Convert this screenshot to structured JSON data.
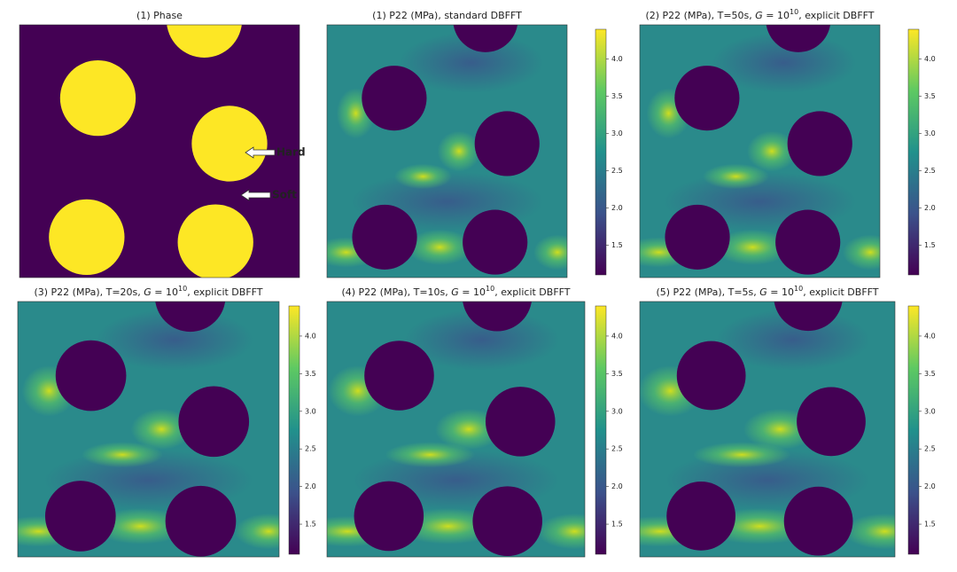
{
  "panels": [
    {
      "title": [
        "(1) Phase"
      ]
    },
    {
      "title": [
        "(1) P22 (MPa), standard DBFFT"
      ]
    },
    {
      "title": [
        "(2) P22 (MPa), T=50s, ",
        "G",
        " = 10",
        "10",
        ", explicit DBFFT"
      ]
    },
    {
      "title": [
        "(3) P22 (MPa), T=20s, ",
        "G",
        " = 10",
        "10",
        ", explicit DBFFT"
      ]
    },
    {
      "title": [
        "(4) P22 (MPa), T=10s, ",
        "G",
        " = 10",
        "10",
        ", explicit DBFFT"
      ]
    },
    {
      "title": [
        "(5) P22 (MPa), T=5s,  ",
        "G",
        " = 10",
        "10",
        ", explicit DBFFT"
      ]
    }
  ],
  "colorbar": {
    "clim": [
      1.1,
      4.4
    ],
    "ticks": [
      {
        "value": 1.5,
        "label": "1.5"
      },
      {
        "value": 2,
        "label": "2.0"
      },
      {
        "value": 2.5,
        "label": "2.5"
      },
      {
        "value": 3,
        "label": "3.0"
      },
      {
        "value": 3.5,
        "label": "3.5"
      },
      {
        "value": 4,
        "label": "4.0"
      }
    ]
  },
  "annotations": [
    "Hard",
    "Soft"
  ]
}
